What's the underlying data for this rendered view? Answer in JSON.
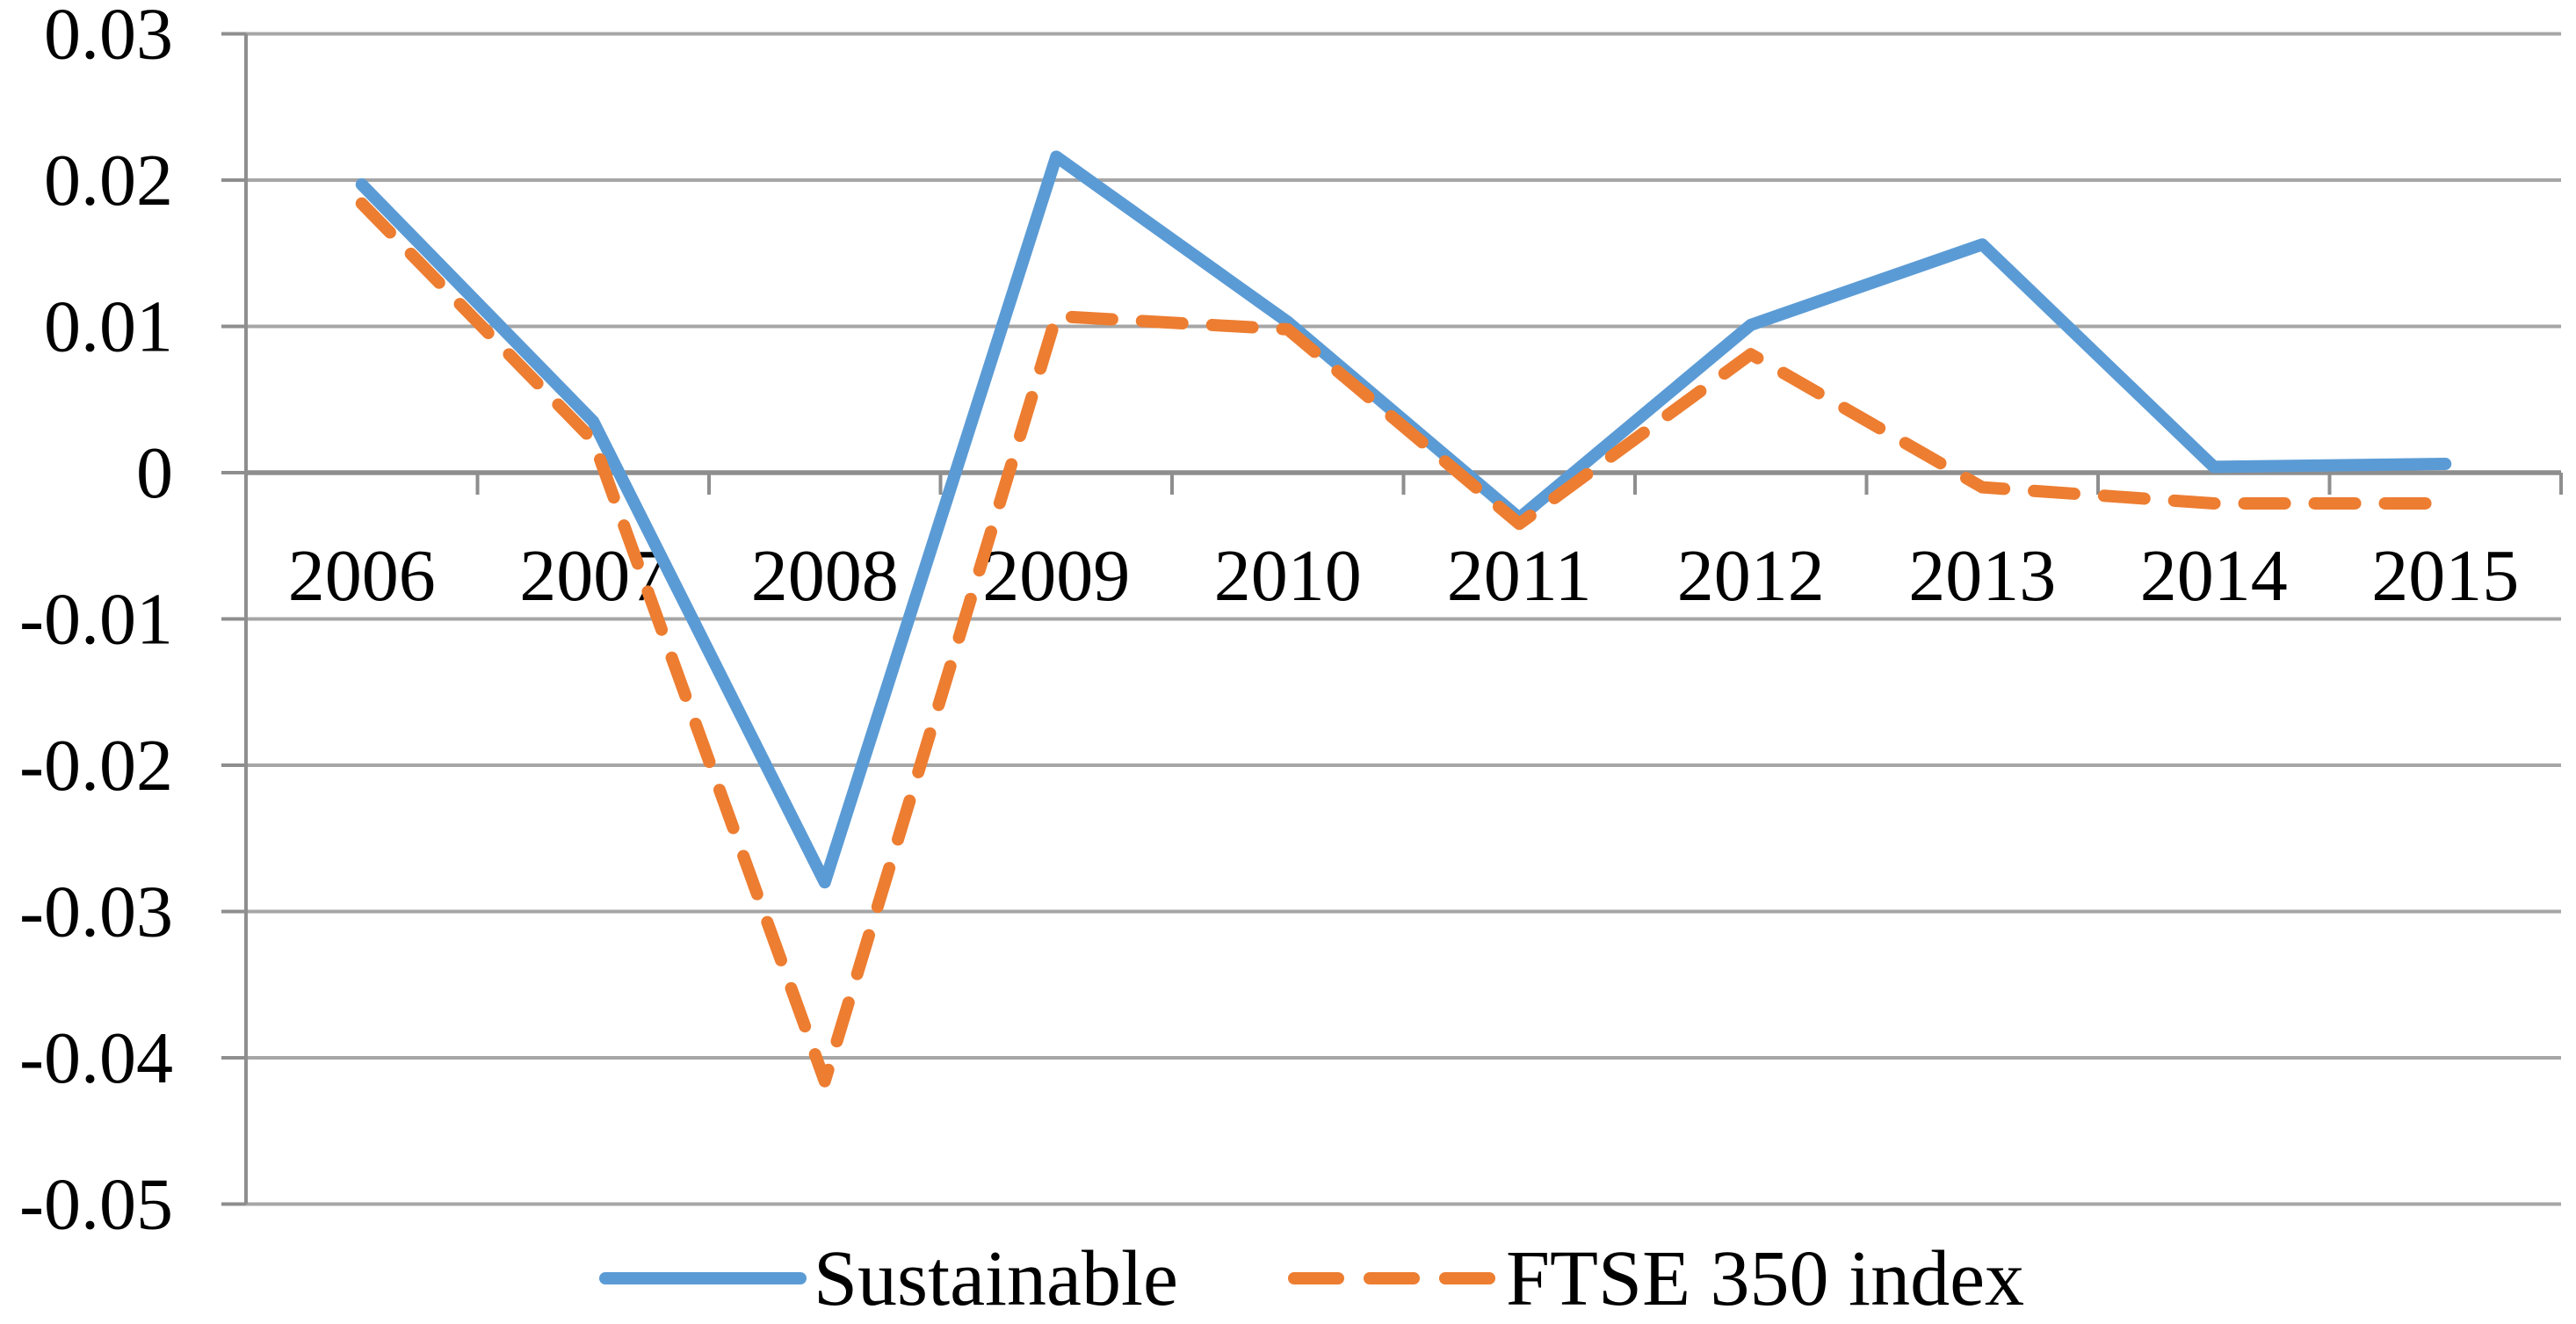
{
  "chart_data": {
    "type": "line",
    "categories": [
      "2006",
      "2007",
      "2008",
      "2009",
      "2010",
      "2011",
      "2012",
      "2013",
      "2014",
      "2015"
    ],
    "series": [
      {
        "name": "Sustainable",
        "style": "solid",
        "color": "#5B9BD5",
        "values": [
          0.0197,
          0.0035,
          -0.028,
          0.0216,
          0.0103,
          -0.0031,
          0.0101,
          0.0156,
          0.0004,
          0.0006
        ]
      },
      {
        "name": "FTSE 350 index",
        "style": "dashed",
        "color": "#ED7D31",
        "values": [
          0.0184,
          0.0022,
          -0.0416,
          0.0107,
          0.0098,
          -0.0035,
          0.0081,
          -0.001,
          -0.0021,
          -0.0021
        ]
      }
    ],
    "title": "",
    "xlabel": "",
    "ylabel": "",
    "ylim": [
      -0.05,
      0.03
    ],
    "ytick_interval": 0.01,
    "yticks": [
      0.03,
      0.02,
      0.01,
      0,
      -0.01,
      -0.02,
      -0.03,
      -0.04,
      -0.05
    ],
    "ytick_labels": [
      "0.03",
      "0.02",
      "0.01",
      "0",
      "-0.01",
      "-0.02",
      "-0.03",
      "-0.04",
      "-0.05"
    ],
    "grid": true,
    "legend_position": "bottom"
  },
  "colors": {
    "gridline": "#A6A6A6",
    "axis": "#8E8E8E",
    "text": "#000000",
    "background": "#FFFFFF"
  }
}
